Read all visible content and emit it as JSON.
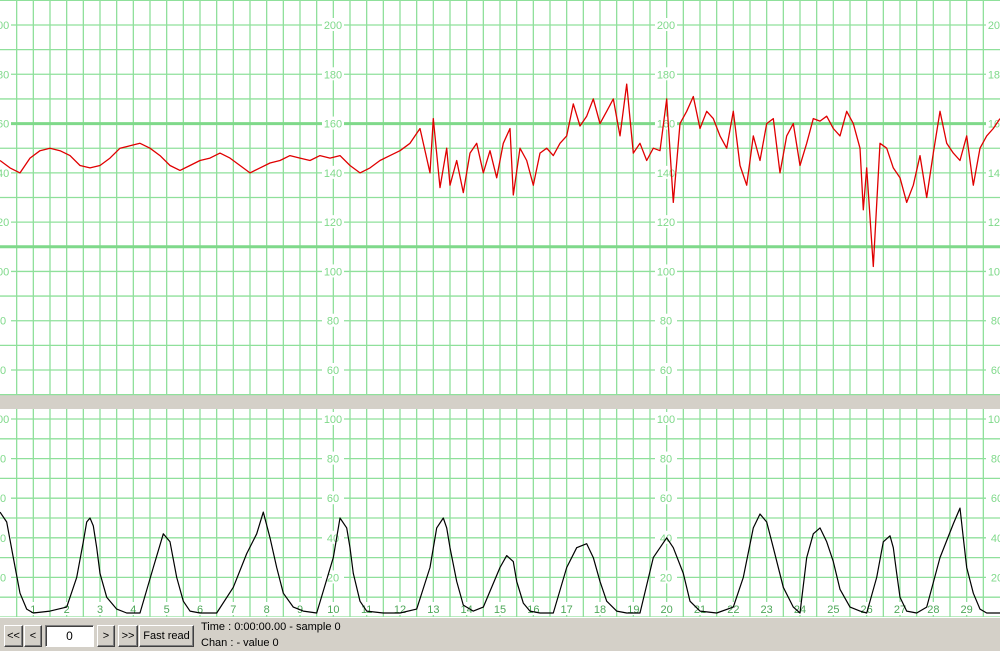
{
  "chart_data": [
    {
      "type": "line",
      "title": "",
      "xlabel": "",
      "ylabel": "",
      "ylim": [
        50,
        210
      ],
      "yticks": [
        60,
        80,
        100,
        120,
        140,
        160,
        180,
        200
      ],
      "tick_labels": [
        "60",
        "80",
        "100",
        "120",
        "140",
        "160",
        "180",
        "200"
      ],
      "highlight_lines": [
        110,
        160
      ],
      "grid": true,
      "series": [
        {
          "color": "#e00000",
          "x": [
            0.0,
            0.3,
            0.6,
            0.9,
            1.2,
            1.5,
            1.8,
            2.1,
            2.4,
            2.7,
            3.0,
            3.3,
            3.6,
            3.9,
            4.2,
            4.5,
            4.8,
            5.1,
            5.4,
            5.7,
            6.0,
            6.3,
            6.6,
            6.9,
            7.2,
            7.5,
            7.8,
            8.1,
            8.4,
            8.7,
            9.0,
            9.3,
            9.6,
            9.9,
            10.2,
            10.5,
            10.8,
            11.1,
            11.4,
            11.7,
            12.0,
            12.3,
            12.6,
            12.9,
            13.0,
            13.2,
            13.4,
            13.5,
            13.7,
            13.9,
            14.1,
            14.3,
            14.5,
            14.7,
            14.9,
            15.1,
            15.3,
            15.4,
            15.6,
            15.8,
            16.0,
            16.2,
            16.4,
            16.6,
            16.8,
            17.0,
            17.2,
            17.4,
            17.6,
            17.8,
            18.0,
            18.2,
            18.4,
            18.6,
            18.8,
            19.0,
            19.2,
            19.4,
            19.6,
            19.8,
            20.0,
            20.2,
            20.4,
            20.6,
            20.8,
            21.0,
            21.2,
            21.4,
            21.6,
            21.8,
            22.0,
            22.2,
            22.4,
            22.6,
            22.8,
            23.0,
            23.2,
            23.4,
            23.6,
            23.8,
            24.0,
            24.2,
            24.4,
            24.6,
            24.8,
            25.0,
            25.2,
            25.4,
            25.6,
            25.8,
            25.9,
            26.0,
            26.1,
            26.2,
            26.4,
            26.6,
            26.8,
            27.0,
            27.2,
            27.4,
            27.6,
            27.8,
            28.0,
            28.2,
            28.4,
            28.6,
            28.8,
            29.0,
            29.2,
            29.4,
            29.6,
            29.8,
            30.0
          ],
          "values": [
            145,
            142,
            140,
            146,
            149,
            150,
            149,
            147,
            143,
            142,
            143,
            146,
            150,
            151,
            152,
            150,
            147,
            143,
            141,
            143,
            145,
            146,
            148,
            146,
            143,
            140,
            142,
            144,
            145,
            147,
            146,
            145,
            147,
            146,
            147,
            143,
            140,
            142,
            145,
            147,
            149,
            152,
            158,
            140,
            162,
            134,
            150,
            135,
            145,
            132,
            148,
            152,
            140,
            149,
            138,
            152,
            158,
            131,
            150,
            145,
            135,
            148,
            150,
            147,
            152,
            155,
            168,
            159,
            163,
            170,
            160,
            165,
            170,
            155,
            176,
            148,
            152,
            145,
            150,
            149,
            170,
            128,
            160,
            165,
            171,
            158,
            165,
            162,
            155,
            150,
            165,
            143,
            135,
            155,
            145,
            160,
            162,
            140,
            155,
            160,
            143,
            152,
            162,
            161,
            163,
            158,
            155,
            165,
            160,
            150,
            125,
            142,
            122,
            102,
            152,
            150,
            142,
            138,
            128,
            135,
            147,
            130,
            148,
            165,
            152,
            148,
            145,
            155,
            135,
            150,
            155,
            158,
            162
          ]
        }
      ]
    },
    {
      "type": "line",
      "title": "",
      "xlabel": "",
      "ylabel": "",
      "ylim": [
        0,
        100
      ],
      "yticks": [
        20,
        40,
        60,
        80,
        100
      ],
      "tick_labels": [
        "20",
        "40",
        "60",
        "80",
        "100"
      ],
      "grid": true,
      "categories": [
        "1",
        "2",
        "3",
        "4",
        "5",
        "6",
        "7",
        "8",
        "9",
        "10",
        "11",
        "12",
        "13",
        "14",
        "15",
        "16",
        "17",
        "18",
        "19",
        "20",
        "21",
        "22",
        "23",
        "24",
        "25",
        "26",
        "27",
        "28",
        "29"
      ],
      "series": [
        {
          "color": "#000000",
          "x": [
            0.0,
            0.2,
            0.4,
            0.6,
            0.8,
            1.0,
            1.5,
            2.0,
            2.3,
            2.5,
            2.6,
            2.7,
            2.8,
            2.9,
            3.0,
            3.2,
            3.5,
            3.8,
            4.2,
            4.6,
            4.9,
            5.1,
            5.3,
            5.5,
            5.7,
            6.0,
            6.5,
            7.0,
            7.4,
            7.7,
            7.9,
            8.1,
            8.3,
            8.5,
            8.8,
            9.1,
            9.5,
            10.0,
            10.2,
            10.4,
            10.5,
            10.6,
            10.8,
            11.0,
            11.5,
            12.0,
            12.5,
            12.9,
            13.1,
            13.3,
            13.4,
            13.5,
            13.7,
            13.9,
            14.2,
            14.5,
            15.0,
            15.2,
            15.4,
            15.5,
            15.7,
            15.9,
            16.2,
            16.6,
            17.0,
            17.3,
            17.6,
            17.8,
            18.0,
            18.2,
            18.5,
            18.8,
            19.2,
            19.6,
            20.0,
            20.2,
            20.5,
            20.7,
            21.0,
            21.5,
            22.0,
            22.3,
            22.6,
            22.8,
            23.0,
            23.2,
            23.5,
            23.8,
            24.0,
            24.2,
            24.4,
            24.6,
            24.8,
            25.0,
            25.2,
            25.5,
            25.8,
            26.0,
            26.3,
            26.5,
            26.7,
            26.8,
            26.9,
            27.0,
            27.2,
            27.5,
            27.8,
            28.2,
            28.6,
            28.8,
            28.9,
            29.0,
            29.2,
            29.4,
            29.6,
            30.0
          ],
          "values": [
            53,
            48,
            30,
            12,
            4,
            2,
            3,
            5,
            20,
            38,
            48,
            50,
            46,
            35,
            22,
            10,
            4,
            2,
            2,
            25,
            42,
            38,
            20,
            8,
            3,
            2,
            2,
            15,
            32,
            42,
            53,
            40,
            25,
            12,
            5,
            3,
            2,
            30,
            50,
            45,
            35,
            22,
            8,
            3,
            2,
            2,
            4,
            25,
            45,
            50,
            45,
            35,
            18,
            6,
            3,
            5,
            25,
            31,
            28,
            18,
            7,
            3,
            2,
            2,
            25,
            35,
            37,
            30,
            18,
            8,
            3,
            2,
            2,
            30,
            40,
            35,
            22,
            8,
            3,
            2,
            5,
            20,
            45,
            52,
            48,
            35,
            15,
            5,
            2,
            30,
            42,
            45,
            38,
            28,
            14,
            5,
            3,
            2,
            20,
            38,
            41,
            35,
            22,
            10,
            3,
            2,
            5,
            30,
            47,
            55,
            40,
            25,
            12,
            4,
            2,
            2
          ]
        }
      ]
    }
  ],
  "toolbar": {
    "first_label": "<<",
    "prev_label": "<",
    "position_value": "0",
    "next_label": ">",
    "last_label": ">>",
    "fast_read_label": "Fast read"
  },
  "status": {
    "time_line": "Time : 0:00:00.00 - sample 0",
    "chan_line": "Chan :  - value 0"
  }
}
